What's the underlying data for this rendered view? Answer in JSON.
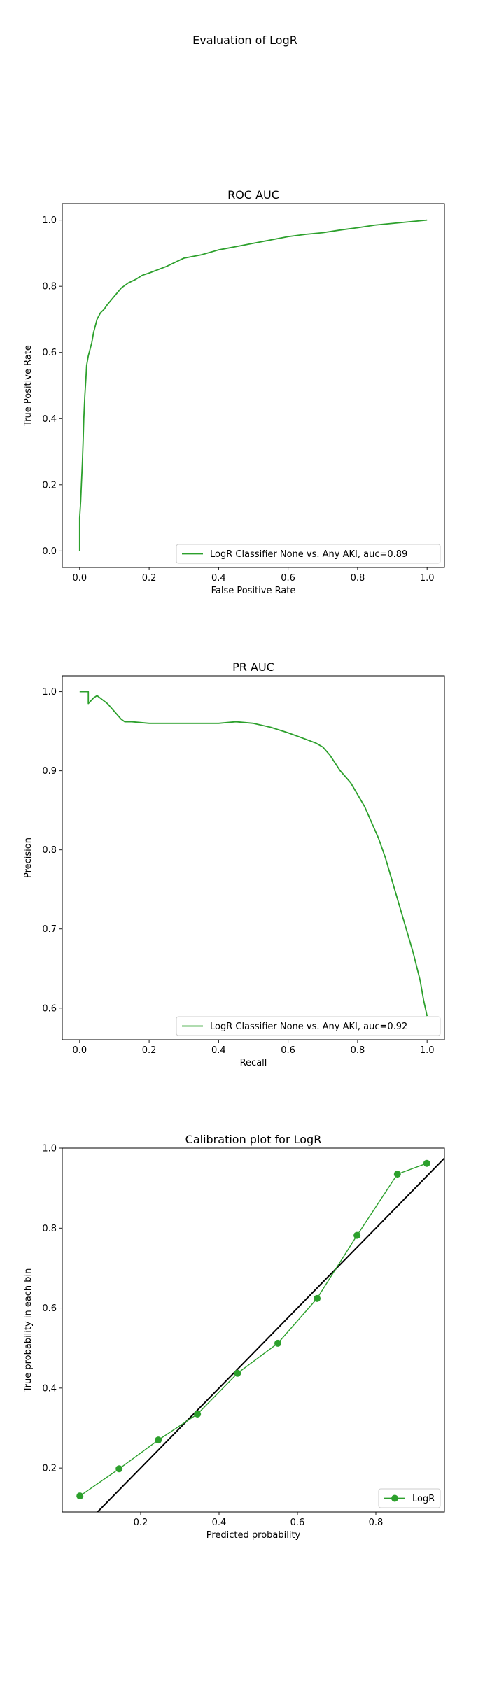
{
  "figure": {
    "title": "Evaluation of LogR"
  },
  "colors": {
    "series": "#2ca02c",
    "reference": "#000000",
    "axis": "#000000"
  },
  "chart_data": [
    {
      "id": "roc",
      "type": "line",
      "title": "ROC AUC",
      "xlabel": "False Positive Rate",
      "ylabel": "True Positive Rate",
      "xlim": [
        -0.05,
        1.05
      ],
      "ylim": [
        -0.05,
        1.05
      ],
      "xticks": [
        0.0,
        0.2,
        0.4,
        0.6,
        0.8,
        1.0
      ],
      "yticks": [
        0.0,
        0.2,
        0.4,
        0.6,
        0.8,
        1.0
      ],
      "tick_format": 1,
      "grid": false,
      "legend_position": "lower-right",
      "series": [
        {
          "name": "LogR Classifier None vs. Any AKI, auc=0.89",
          "marker": "none",
          "x": [
            0.0,
            0.0,
            0.003,
            0.005,
            0.008,
            0.01,
            0.012,
            0.015,
            0.018,
            0.02,
            0.025,
            0.03,
            0.035,
            0.04,
            0.05,
            0.06,
            0.07,
            0.08,
            0.1,
            0.12,
            0.14,
            0.16,
            0.18,
            0.2,
            0.25,
            0.3,
            0.35,
            0.4,
            0.45,
            0.5,
            0.55,
            0.6,
            0.65,
            0.7,
            0.75,
            0.8,
            0.85,
            0.9,
            0.95,
            1.0
          ],
          "y": [
            0.0,
            0.1,
            0.15,
            0.2,
            0.27,
            0.33,
            0.4,
            0.47,
            0.52,
            0.56,
            0.59,
            0.61,
            0.63,
            0.66,
            0.7,
            0.72,
            0.73,
            0.745,
            0.77,
            0.795,
            0.81,
            0.82,
            0.833,
            0.84,
            0.86,
            0.885,
            0.895,
            0.91,
            0.92,
            0.93,
            0.94,
            0.95,
            0.957,
            0.962,
            0.97,
            0.977,
            0.985,
            0.99,
            0.995,
            1.0
          ]
        }
      ]
    },
    {
      "id": "pr",
      "type": "line",
      "title": "PR AUC",
      "xlabel": "Recall",
      "ylabel": "Precision",
      "xlim": [
        -0.05,
        1.05
      ],
      "ylim": [
        0.56,
        1.02
      ],
      "xticks": [
        0.0,
        0.2,
        0.4,
        0.6,
        0.8,
        1.0
      ],
      "yticks": [
        0.6,
        0.7,
        0.8,
        0.9,
        1.0
      ],
      "tick_format": 1,
      "grid": false,
      "legend_position": "lower-right",
      "series": [
        {
          "name": "LogR Classifier None vs. Any AKI, auc=0.92",
          "marker": "none",
          "x": [
            0.0,
            0.015,
            0.025,
            0.025,
            0.04,
            0.05,
            0.065,
            0.08,
            0.1,
            0.12,
            0.13,
            0.15,
            0.2,
            0.25,
            0.3,
            0.35,
            0.4,
            0.45,
            0.5,
            0.55,
            0.6,
            0.65,
            0.68,
            0.7,
            0.72,
            0.75,
            0.78,
            0.8,
            0.82,
            0.84,
            0.86,
            0.88,
            0.9,
            0.92,
            0.94,
            0.96,
            0.98,
            0.99,
            1.0
          ],
          "y": [
            1.0,
            1.0,
            1.0,
            0.985,
            0.992,
            0.995,
            0.99,
            0.985,
            0.975,
            0.965,
            0.962,
            0.962,
            0.96,
            0.96,
            0.96,
            0.96,
            0.96,
            0.962,
            0.96,
            0.955,
            0.948,
            0.94,
            0.935,
            0.93,
            0.92,
            0.9,
            0.885,
            0.87,
            0.855,
            0.835,
            0.815,
            0.79,
            0.76,
            0.73,
            0.7,
            0.67,
            0.635,
            0.61,
            0.59
          ]
        }
      ]
    },
    {
      "id": "calibration",
      "type": "line",
      "title": "Calibration plot for LogR",
      "xlabel": "Predicted probability",
      "ylabel": "True probability in each bin",
      "xlim": [
        0.0,
        0.975
      ],
      "ylim": [
        0.09,
        1.0
      ],
      "xticks": [
        0.2,
        0.4,
        0.6,
        0.8
      ],
      "yticks": [
        0.2,
        0.4,
        0.6,
        0.8,
        1.0
      ],
      "tick_format": 1,
      "grid": false,
      "legend_position": "lower-right",
      "reference_line": [
        [
          0.0,
          0.0
        ],
        [
          1.0,
          1.0
        ]
      ],
      "series": [
        {
          "name": "LogR",
          "marker": "circle",
          "x": [
            0.045,
            0.145,
            0.245,
            0.345,
            0.447,
            0.55,
            0.65,
            0.752,
            0.855,
            0.93
          ],
          "y": [
            0.13,
            0.198,
            0.27,
            0.335,
            0.437,
            0.512,
            0.624,
            0.782,
            0.935,
            0.962
          ]
        }
      ]
    }
  ]
}
